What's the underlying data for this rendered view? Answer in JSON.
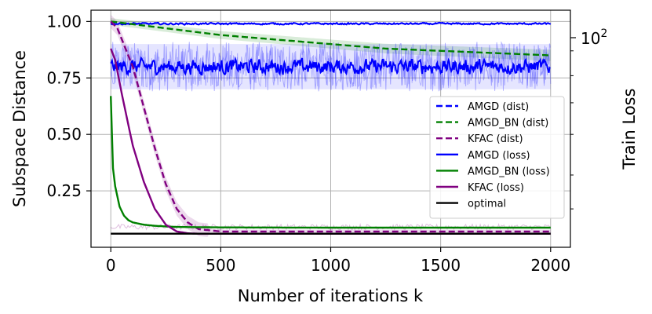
{
  "chart_data": {
    "type": "line",
    "xlabel": "Number of iterations k",
    "ylabel": "Subspace Distance",
    "y2label": "Train Loss",
    "xlim": [
      -90,
      2090
    ],
    "ylim": [
      0.0,
      1.05
    ],
    "xticks": [
      0,
      500,
      1000,
      1500,
      2000
    ],
    "xtick_labels": [
      "0",
      "500",
      "1000",
      "1500",
      "2000"
    ],
    "yticks": [
      0.25,
      0.5,
      0.75,
      1.0
    ],
    "ytick_labels": [
      "0.25",
      "0.50",
      "0.75",
      "1.00"
    ],
    "y2_major_label": "10",
    "y2_major_exponent": "2",
    "grid": true,
    "legend_position": "center-right",
    "series": [
      {
        "name": "AMGD (dist)",
        "color": "#0000ff",
        "style": "dashed",
        "x": [
          0,
          500,
          1000,
          1500,
          2000
        ],
        "values": [
          0.99,
          0.99,
          0.99,
          0.99,
          0.99
        ]
      },
      {
        "name": "AMGD_BN (dist)",
        "color": "#008000",
        "style": "dashed",
        "x": [
          0,
          250,
          500,
          750,
          1000,
          1250,
          1500,
          1750,
          2000
        ],
        "values": [
          1.0,
          0.97,
          0.94,
          0.92,
          0.9,
          0.88,
          0.87,
          0.86,
          0.85
        ]
      },
      {
        "name": "KFAC (dist)",
        "color": "#800080",
        "style": "dashed",
        "x": [
          0,
          30,
          100,
          150,
          200,
          250,
          300,
          350,
          400,
          500,
          1000,
          1500,
          2000
        ],
        "values": [
          1.0,
          0.97,
          0.8,
          0.62,
          0.44,
          0.28,
          0.17,
          0.11,
          0.08,
          0.07,
          0.07,
          0.07,
          0.07
        ]
      },
      {
        "name": "AMGD (loss)",
        "color": "#0000ff",
        "style": "solid",
        "x": [
          0,
          500,
          1000,
          1500,
          2000
        ],
        "values": [
          0.8,
          0.8,
          0.8,
          0.8,
          0.8
        ]
      },
      {
        "name": "AMGD_BN (loss)",
        "color": "#008000",
        "style": "solid",
        "x": [
          0,
          10,
          20,
          40,
          60,
          80,
          100,
          150,
          200,
          300,
          500,
          1000,
          1500,
          2000
        ],
        "values": [
          0.67,
          0.35,
          0.27,
          0.18,
          0.14,
          0.12,
          0.11,
          0.1,
          0.095,
          0.09,
          0.088,
          0.087,
          0.087,
          0.087
        ]
      },
      {
        "name": "KFAC (loss)",
        "color": "#800080",
        "style": "solid",
        "x": [
          0,
          20,
          50,
          100,
          150,
          200,
          250,
          300,
          350,
          400,
          500,
          1000,
          1500,
          2000
        ],
        "values": [
          0.88,
          0.83,
          0.68,
          0.45,
          0.29,
          0.17,
          0.1,
          0.07,
          0.062,
          0.06,
          0.06,
          0.06,
          0.06,
          0.06
        ]
      },
      {
        "name": "optimal",
        "color": "#000000",
        "style": "solid",
        "x": [
          0,
          2000
        ],
        "values": [
          0.06,
          0.06
        ]
      }
    ]
  }
}
